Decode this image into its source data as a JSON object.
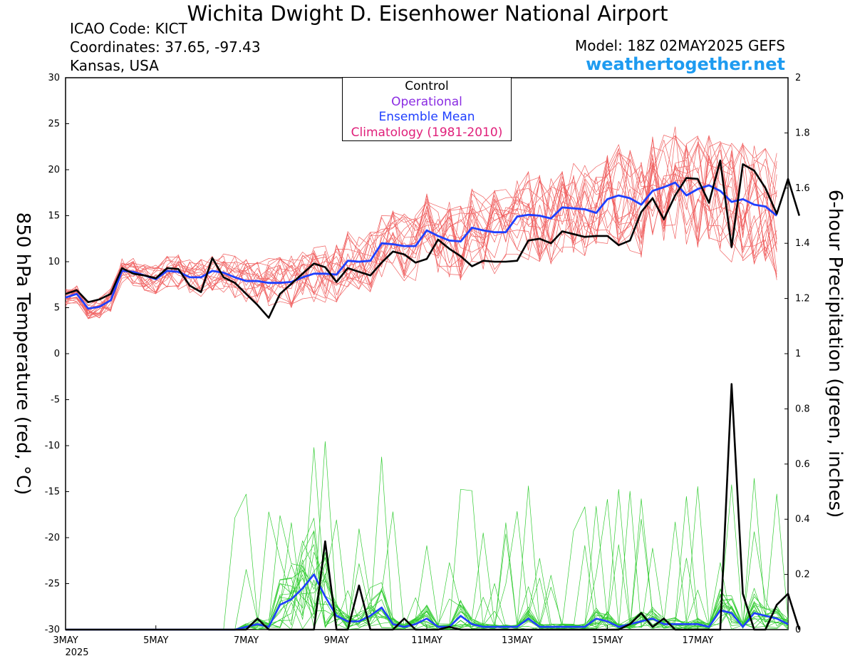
{
  "header": {
    "title": "Wichita Dwight D. Eisenhower National Airport",
    "icao": "ICAO Code: KICT",
    "coordinates": "Coordinates: 37.65, -97.43",
    "location": "Kansas, USA",
    "model": "Model: 18Z 02MAY2025 GEFS",
    "site": "weathertogether.net"
  },
  "colors": {
    "control": "#000000",
    "operational": "#8a2be2",
    "ensemble_mean": "#1f3fff",
    "climatology": "#e0207a",
    "temperature_members": "#f06060",
    "precip_members": "#33cc33",
    "site": "#1e9bf0"
  },
  "chart_data": {
    "type": "line",
    "title": "Wichita Dwight D. Eisenhower National Airport",
    "ylabel_left": "850 hPa Temperature (red, °C)",
    "ylabel_right": "6-hour Precipitation (green, inches)",
    "ylim_left": [
      -30,
      30
    ],
    "ylim_right": [
      0,
      2
    ],
    "y_ticks_left": [
      "30",
      "25",
      "20",
      "15",
      "10",
      "5",
      "0",
      "-5",
      "-10",
      "-15",
      "-20",
      "-25",
      "-30"
    ],
    "y_ticks_right": [
      "2",
      "1.8",
      "1.6",
      "1.4",
      "1.2",
      "1",
      "0.8",
      "0.6",
      "0.4",
      "0.2",
      "0"
    ],
    "x_ticks": [
      "3MAY",
      "5MAY",
      "7MAY",
      "9MAY",
      "11MAY",
      "13MAY",
      "15MAY",
      "17MAY"
    ],
    "x_tick_sub": "2025",
    "x_step": "6 hours, starting 00Z 3 May 2025",
    "legend": [
      {
        "label": "Control",
        "color": "#000000"
      },
      {
        "label": "Operational",
        "color": "#8a2be2"
      },
      {
        "label": "Ensemble Mean",
        "color": "#1f3fff"
      },
      {
        "label": "Climatology (1981-2010)",
        "color": "#e0207a"
      }
    ],
    "series": [
      {
        "name": "Control",
        "axis": "left",
        "values": [
          6.5,
          6.9,
          5.6,
          5.9,
          6.5,
          9.3,
          8.7,
          8.5,
          8.2,
          9.3,
          9.2,
          7.4,
          6.7,
          10.4,
          8.3,
          7.7,
          6.5,
          5.3,
          3.9,
          6.5,
          7.6,
          8.7,
          9.8,
          9.4,
          7.8,
          9.3,
          8.9,
          8.5,
          9.9,
          11.1,
          10.8,
          9.9,
          10.3,
          12.4,
          11.4,
          10.6,
          9.5,
          10.1,
          10.0,
          10.0,
          10.1,
          12.3,
          12.5,
          12.0,
          13.3,
          13.0,
          12.7,
          12.8,
          12.8,
          11.8,
          12.3,
          15.4,
          16.9,
          14.6,
          17.2,
          19.1,
          19.0,
          16.4,
          21.0,
          11.6,
          20.6,
          19.9,
          18.0,
          15.2,
          19.0,
          15.0
        ]
      },
      {
        "name": "Ensemble Mean",
        "axis": "left",
        "values": [
          6.1,
          6.5,
          4.9,
          5.1,
          5.8,
          9.0,
          8.9,
          8.5,
          8.1,
          9.0,
          8.9,
          8.3,
          8.3,
          9.0,
          8.8,
          8.3,
          7.9,
          7.9,
          7.7,
          7.7,
          7.8,
          8.3,
          8.7,
          8.7,
          8.6,
          10.1,
          10.0,
          10.1,
          12.0,
          11.9,
          11.7,
          11.7,
          13.4,
          12.8,
          12.3,
          12.2,
          13.7,
          13.4,
          13.2,
          13.2,
          14.9,
          15.1,
          15.0,
          14.7,
          15.9,
          15.8,
          15.7,
          15.3,
          16.8,
          17.2,
          16.9,
          16.2,
          17.7,
          18.1,
          18.6,
          17.2,
          17.9,
          18.3,
          17.7,
          16.5,
          16.8,
          16.2,
          16.0,
          15.0
        ]
      },
      {
        "name": "Control",
        "axis": "right",
        "values": [
          0,
          0,
          0,
          0,
          0,
          0,
          0,
          0,
          0,
          0,
          0,
          0,
          0,
          0,
          0,
          0,
          0,
          0.04,
          0,
          0,
          0,
          0,
          0,
          0.32,
          0,
          0,
          0.16,
          0,
          0,
          0,
          0.04,
          0,
          0,
          0,
          0.01,
          0,
          0,
          0,
          0,
          0,
          0,
          0,
          0,
          0,
          0,
          0,
          0,
          0,
          0,
          0,
          0.02,
          0.06,
          0.01,
          0.04,
          0,
          0,
          0,
          0,
          0,
          0.89,
          0.13,
          0,
          0,
          0.09,
          0.13,
          0
        ]
      },
      {
        "name": "Ensemble Mean",
        "axis": "right",
        "values": [
          0,
          0,
          0,
          0,
          0,
          0,
          0,
          0,
          0,
          0,
          0,
          0,
          0,
          0,
          0,
          0,
          0.01,
          0.02,
          0.01,
          0.09,
          0.11,
          0.15,
          0.2,
          0.12,
          0.05,
          0.03,
          0.03,
          0.05,
          0.08,
          0.02,
          0.01,
          0.02,
          0.04,
          0.01,
          0.01,
          0.05,
          0.02,
          0.01,
          0.01,
          0.01,
          0.01,
          0.04,
          0.01,
          0.01,
          0.01,
          0.01,
          0.01,
          0.04,
          0.03,
          0.01,
          0.02,
          0.03,
          0.04,
          0.02,
          0.02,
          0.02,
          0.02,
          0.01,
          0.07,
          0.06,
          0.01,
          0.06,
          0.05,
          0.04,
          0.02
        ]
      }
    ],
    "ensemble_members_note": "20 members (temperature red, precipitation green)"
  }
}
